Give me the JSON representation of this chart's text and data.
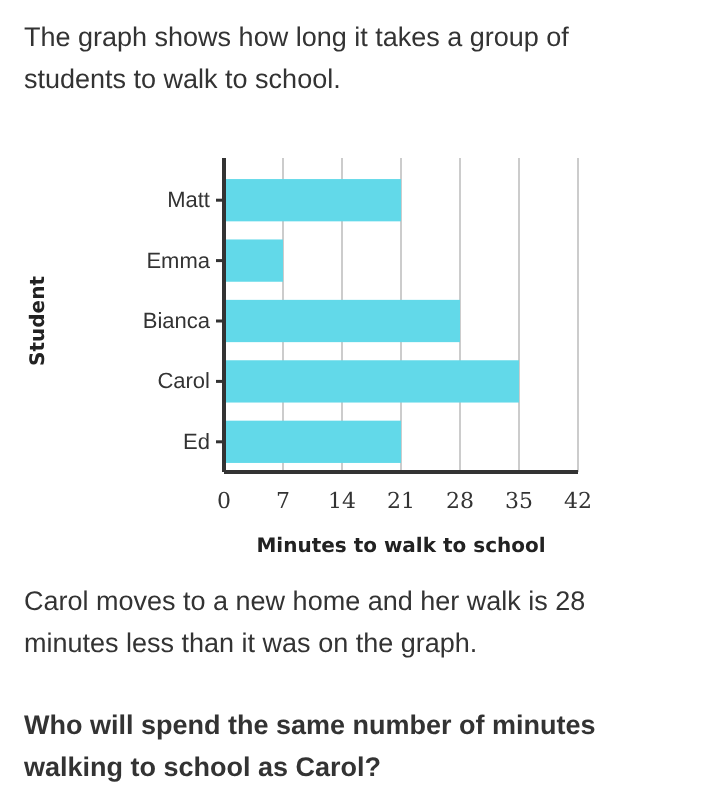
{
  "chart_data": {
    "type": "bar",
    "orientation": "horizontal",
    "title": "The graph shows how long it takes a group of students to walk to school.",
    "categories": [
      "Matt",
      "Emma",
      "Bianca",
      "Carol",
      "Ed"
    ],
    "values": [
      21,
      7,
      28,
      35,
      21
    ],
    "color": "#62d9e9",
    "xlim": [
      0,
      42
    ],
    "xticks": [
      0,
      7,
      14,
      21,
      28,
      35,
      42
    ],
    "grid": "x",
    "xlabel": "Minutes to walk to school",
    "ylabel": "Student",
    "annotations": [
      "Carol moves to a new home and her walk is 28 minutes less than it was on the graph.",
      "Who will spend the same number of minutes walking to school as Carol?"
    ]
  }
}
